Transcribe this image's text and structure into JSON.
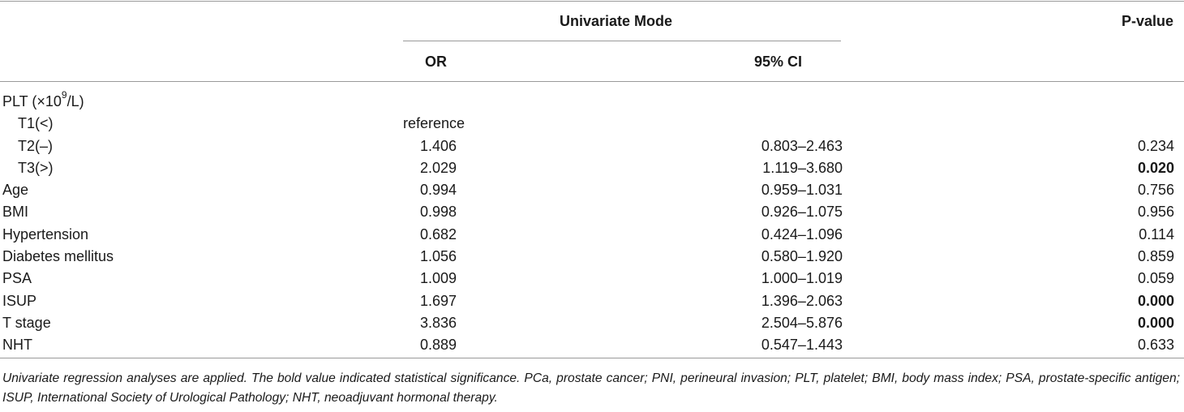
{
  "header": {
    "group_label": "Univariate Mode",
    "pvalue_label": "P-value",
    "or_label": "OR",
    "ci_label": "95% CI"
  },
  "rows": [
    {
      "label": "PLT (×10",
      "label_sup": "9",
      "label_tail": "/L)",
      "or": "",
      "ci": "",
      "p": "",
      "indent": false,
      "bold": false
    },
    {
      "label": "T1(<)",
      "or": "reference",
      "ci": "",
      "p": "",
      "indent": true,
      "bold": false
    },
    {
      "label": "T2(–)",
      "or": "1.406",
      "ci": "0.803–2.463",
      "p": "0.234",
      "indent": true,
      "bold": false
    },
    {
      "label": "T3(>)",
      "or": "2.029",
      "ci": "1.119–3.680",
      "p": "0.020",
      "indent": true,
      "bold": true
    },
    {
      "label": "Age",
      "or": "0.994",
      "ci": "0.959–1.031",
      "p": "0.756",
      "indent": false,
      "bold": false
    },
    {
      "label": "BMI",
      "or": "0.998",
      "ci": "0.926–1.075",
      "p": "0.956",
      "indent": false,
      "bold": false
    },
    {
      "label": "Hypertension",
      "or": "0.682",
      "ci": "0.424–1.096",
      "p": "0.114",
      "indent": false,
      "bold": false
    },
    {
      "label": "Diabetes mellitus",
      "or": "1.056",
      "ci": "0.580–1.920",
      "p": "0.859",
      "indent": false,
      "bold": false
    },
    {
      "label": "PSA",
      "or": "1.009",
      "ci": "1.000–1.019",
      "p": "0.059",
      "indent": false,
      "bold": false
    },
    {
      "label": "ISUP",
      "or": "1.697",
      "ci": "1.396–2.063",
      "p": "0.000",
      "indent": false,
      "bold": true
    },
    {
      "label": "T stage",
      "or": "3.836",
      "ci": "2.504–5.876",
      "p": "0.000",
      "indent": false,
      "bold": true
    },
    {
      "label": "NHT",
      "or": "0.889",
      "ci": "0.547–1.443",
      "p": "0.633",
      "indent": false,
      "bold": false
    }
  ],
  "footnote": "Univariate regression analyses are applied. The bold value indicated statistical significance. PCa, prostate cancer; PNI, perineural invasion; PLT, platelet; BMI, body mass index; PSA, prostate-specific antigen; ISUP, International Society of Urological Pathology; NHT, neoadjuvant hormonal therapy."
}
